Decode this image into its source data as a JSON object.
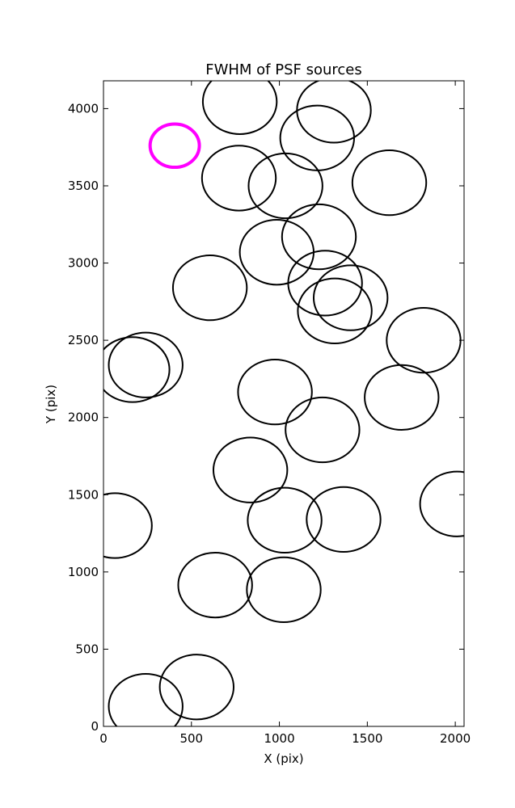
{
  "chart_data": {
    "type": "scatter",
    "title": "FWHM of PSF sources",
    "xlabel": "X (pix)",
    "ylabel": "Y (pix)",
    "xlim": [
      0,
      2050
    ],
    "ylim": [
      0,
      4180
    ],
    "xticks": [
      0,
      500,
      1000,
      1500,
      2000
    ],
    "yticks": [
      0,
      500,
      1000,
      1500,
      2000,
      2500,
      3000,
      3500,
      4000
    ],
    "grid": false,
    "marker": "open-circle",
    "series": [
      {
        "color": "#000000",
        "points": [
          {
            "x": 775,
            "y": 4045,
            "r": 210
          },
          {
            "x": 1310,
            "y": 3990,
            "r": 210
          },
          {
            "x": 1215,
            "y": 3810,
            "r": 210
          },
          {
            "x": 770,
            "y": 3550,
            "r": 210
          },
          {
            "x": 1035,
            "y": 3500,
            "r": 210
          },
          {
            "x": 1625,
            "y": 3520,
            "r": 210
          },
          {
            "x": 1225,
            "y": 3170,
            "r": 210
          },
          {
            "x": 985,
            "y": 3070,
            "r": 210
          },
          {
            "x": 605,
            "y": 2840,
            "r": 210
          },
          {
            "x": 1260,
            "y": 2870,
            "r": 210
          },
          {
            "x": 1405,
            "y": 2775,
            "r": 210
          },
          {
            "x": 1315,
            "y": 2690,
            "r": 210
          },
          {
            "x": 1820,
            "y": 2500,
            "r": 210
          },
          {
            "x": 240,
            "y": 2340,
            "r": 210
          },
          {
            "x": 165,
            "y": 2310,
            "r": 210
          },
          {
            "x": 975,
            "y": 2165,
            "r": 210
          },
          {
            "x": 1695,
            "y": 2130,
            "r": 210
          },
          {
            "x": 1245,
            "y": 1920,
            "r": 210
          },
          {
            "x": 835,
            "y": 1660,
            "r": 210
          },
          {
            "x": 2010,
            "y": 1440,
            "r": 210
          },
          {
            "x": 1365,
            "y": 1340,
            "r": 210
          },
          {
            "x": 1030,
            "y": 1335,
            "r": 210
          },
          {
            "x": 65,
            "y": 1300,
            "r": 210
          },
          {
            "x": 635,
            "y": 915,
            "r": 210
          },
          {
            "x": 1025,
            "y": 885,
            "r": 210
          },
          {
            "x": 530,
            "y": 255,
            "r": 210
          },
          {
            "x": 240,
            "y": 130,
            "r": 210
          }
        ]
      },
      {
        "color": "#ff00ff",
        "points": [
          {
            "x": 405,
            "y": 3760,
            "r": 140
          }
        ]
      }
    ]
  }
}
